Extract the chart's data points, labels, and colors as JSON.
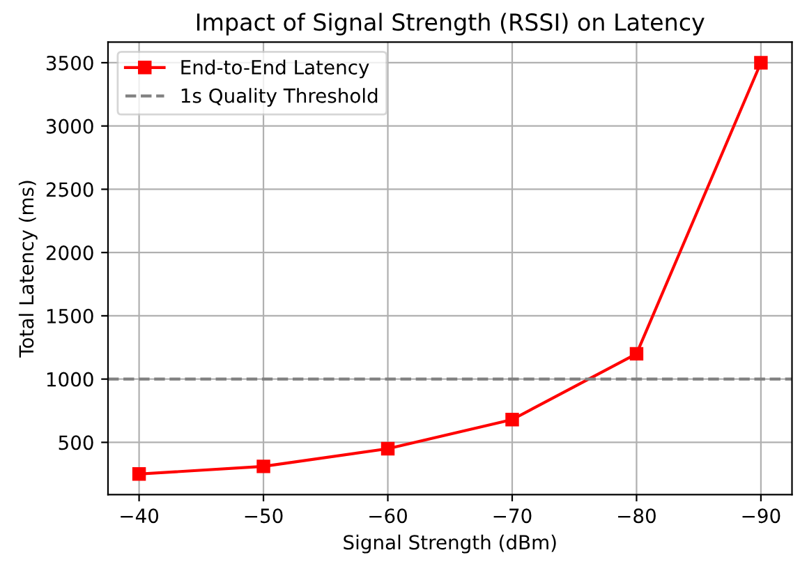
{
  "chart_data": {
    "type": "line",
    "title": "Impact of Signal Strength (RSSI) on Latency",
    "xlabel": "Signal Strength (dBm)",
    "ylabel": "Total Latency (ms)",
    "x": [
      -40,
      -50,
      -60,
      -70,
      -80,
      -90
    ],
    "series": [
      {
        "name": "End-to-End Latency",
        "color": "#ff0000",
        "values": [
          250,
          310,
          450,
          680,
          1200,
          3500
        ]
      }
    ],
    "xlim": [
      -37.5,
      -92.5
    ],
    "xticks": [
      {
        "value": -40,
        "label": "−40"
      },
      {
        "value": -50,
        "label": "−50"
      },
      {
        "value": -60,
        "label": "−60"
      },
      {
        "value": -70,
        "label": "−70"
      },
      {
        "value": -80,
        "label": "−80"
      },
      {
        "value": -90,
        "label": "−90"
      }
    ],
    "ylim": [
      87.5,
      3662.5
    ],
    "yticks": [
      500,
      1000,
      1500,
      2000,
      2500,
      3000,
      3500
    ],
    "ref_lines": [
      {
        "axis": "y",
        "value": 1000,
        "label": "1s Quality Threshold",
        "color": "#808080",
        "line_style": "dashed"
      }
    ],
    "grid": true,
    "legend": "top left",
    "marker": "square",
    "line_style": "solid"
  }
}
